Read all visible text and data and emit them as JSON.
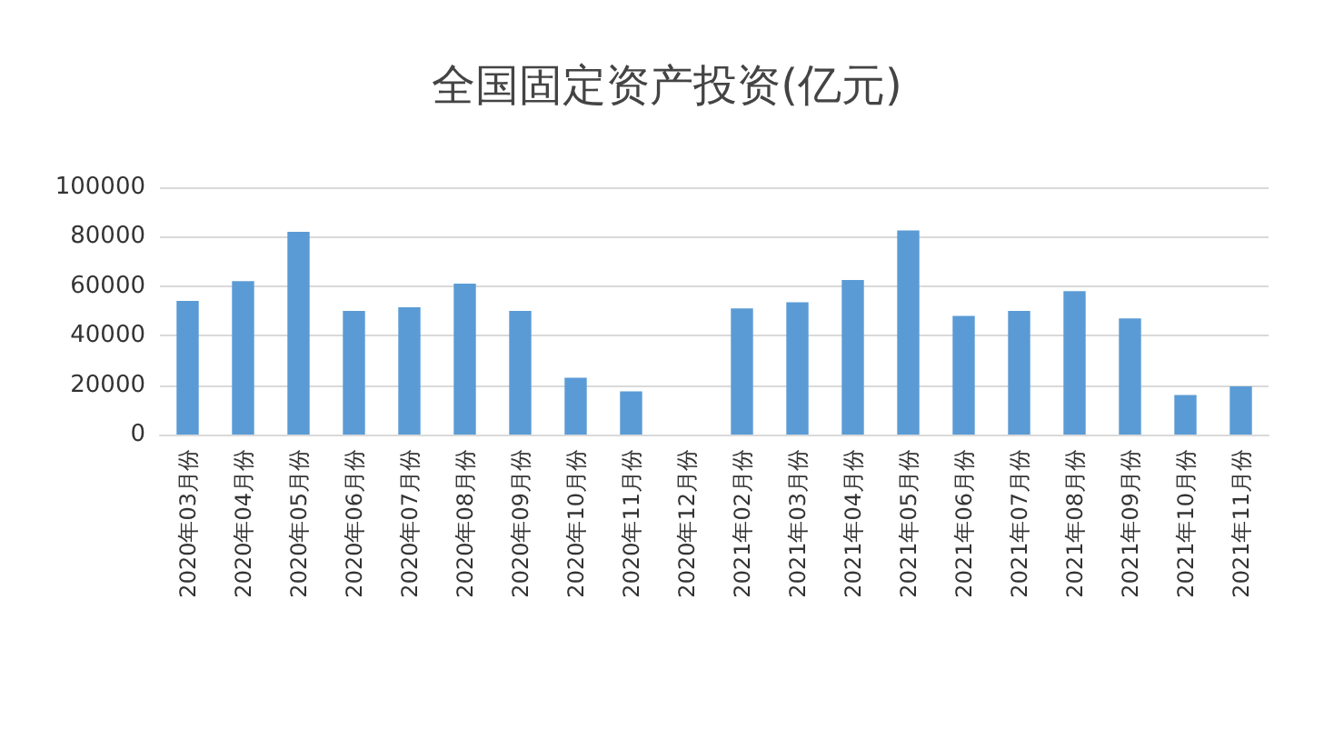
{
  "chart_data": {
    "type": "bar",
    "title": "全国固定资产投资(亿元)",
    "categories": [
      "2020年03月份",
      "2020年04月份",
      "2020年05月份",
      "2020年06月份",
      "2020年07月份",
      "2020年08月份",
      "2020年09月份",
      "2020年10月份",
      "2020年11月份",
      "2020年12月份",
      "2021年02月份",
      "2021年03月份",
      "2021年04月份",
      "2021年05月份",
      "2021年06月份",
      "2021年07月份",
      "2021年08月份",
      "2021年09月份",
      "2021年10月份",
      "2021年11月份"
    ],
    "values": [
      54000,
      62000,
      82000,
      50000,
      51500,
      61000,
      50000,
      23000,
      17500,
      null,
      51000,
      53500,
      62500,
      82500,
      48000,
      50000,
      58000,
      47000,
      16000,
      19500
    ],
    "color": "#5b9bd5",
    "ylim": [
      0,
      100000
    ],
    "yticks": [
      0,
      20000,
      40000,
      60000,
      80000,
      100000
    ],
    "grid": "y"
  }
}
